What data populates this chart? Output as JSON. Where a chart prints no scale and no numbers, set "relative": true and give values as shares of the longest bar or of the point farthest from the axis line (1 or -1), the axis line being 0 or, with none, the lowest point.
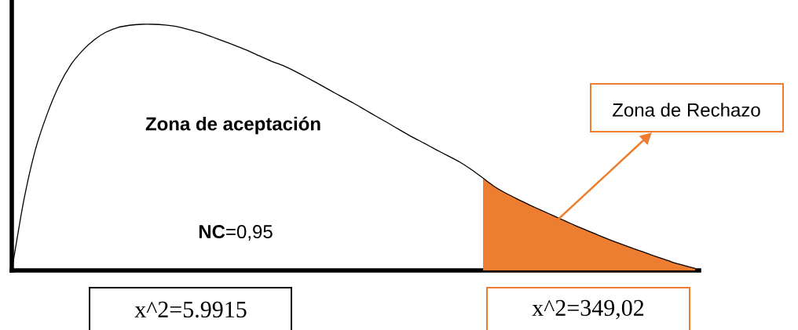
{
  "chart_data": {
    "type": "line",
    "relative": true,
    "categories": [
      null,
      null,
      null,
      null,
      null,
      null,
      null,
      null,
      null,
      null,
      null,
      null,
      null,
      null,
      null,
      null,
      null,
      null,
      null,
      null,
      null,
      null,
      null,
      null,
      null,
      null,
      null,
      null,
      null,
      null,
      null,
      null,
      null,
      null,
      null,
      null,
      null,
      null,
      null,
      null,
      null,
      null,
      null,
      null,
      null,
      null,
      null,
      null,
      null,
      null,
      null,
      null,
      null,
      null,
      null,
      null,
      null,
      null,
      null
    ],
    "series": [
      {
        "color": "#000000",
        "values": [
          0,
          0.28,
          0.49,
          0.635,
          0.75,
          0.835,
          0.893,
          0.937,
          0.968,
          0.987,
          0.996,
          1.0,
          1.0,
          0.997,
          0.991,
          0.979,
          0.966,
          0.949,
          0.931,
          0.913,
          0.894,
          0.872,
          0.851,
          0.833,
          0.81,
          0.785,
          0.759,
          0.732,
          0.706,
          0.68,
          0.652,
          0.624,
          0.597,
          0.569,
          0.542,
          0.517,
          0.491,
          0.466,
          0.441,
          0.41,
          0.375,
          0.34,
          0.312,
          0.288,
          0.265,
          0.243,
          0.222,
          0.2,
          0.179,
          0.159,
          0.139,
          0.12,
          0.102,
          0.085,
          0.068,
          0.051,
          0.035,
          0.021,
          0.008
        ]
      },
      {
        "type": "area",
        "color": "#ed7d31",
        "values": [
          null,
          null,
          null,
          null,
          null,
          null,
          null,
          null,
          null,
          null,
          null,
          null,
          null,
          null,
          null,
          null,
          null,
          null,
          null,
          null,
          null,
          null,
          null,
          null,
          null,
          null,
          null,
          null,
          null,
          null,
          null,
          null,
          null,
          null,
          null,
          null,
          null,
          null,
          null,
          null,
          0.375,
          0.34,
          0.312,
          0.288,
          0.265,
          0.243,
          0.222,
          0.2,
          0.179,
          0.159,
          0.139,
          0.12,
          0.102,
          0.085,
          0.068,
          0.051,
          0.035,
          0.021,
          0.008
        ]
      }
    ],
    "annotations": [
      "Zona de aceptación",
      "**NC**=0,95",
      "x^2=5.9915",
      "x^2=349,02",
      "Zona de Rechazo"
    ]
  }
}
